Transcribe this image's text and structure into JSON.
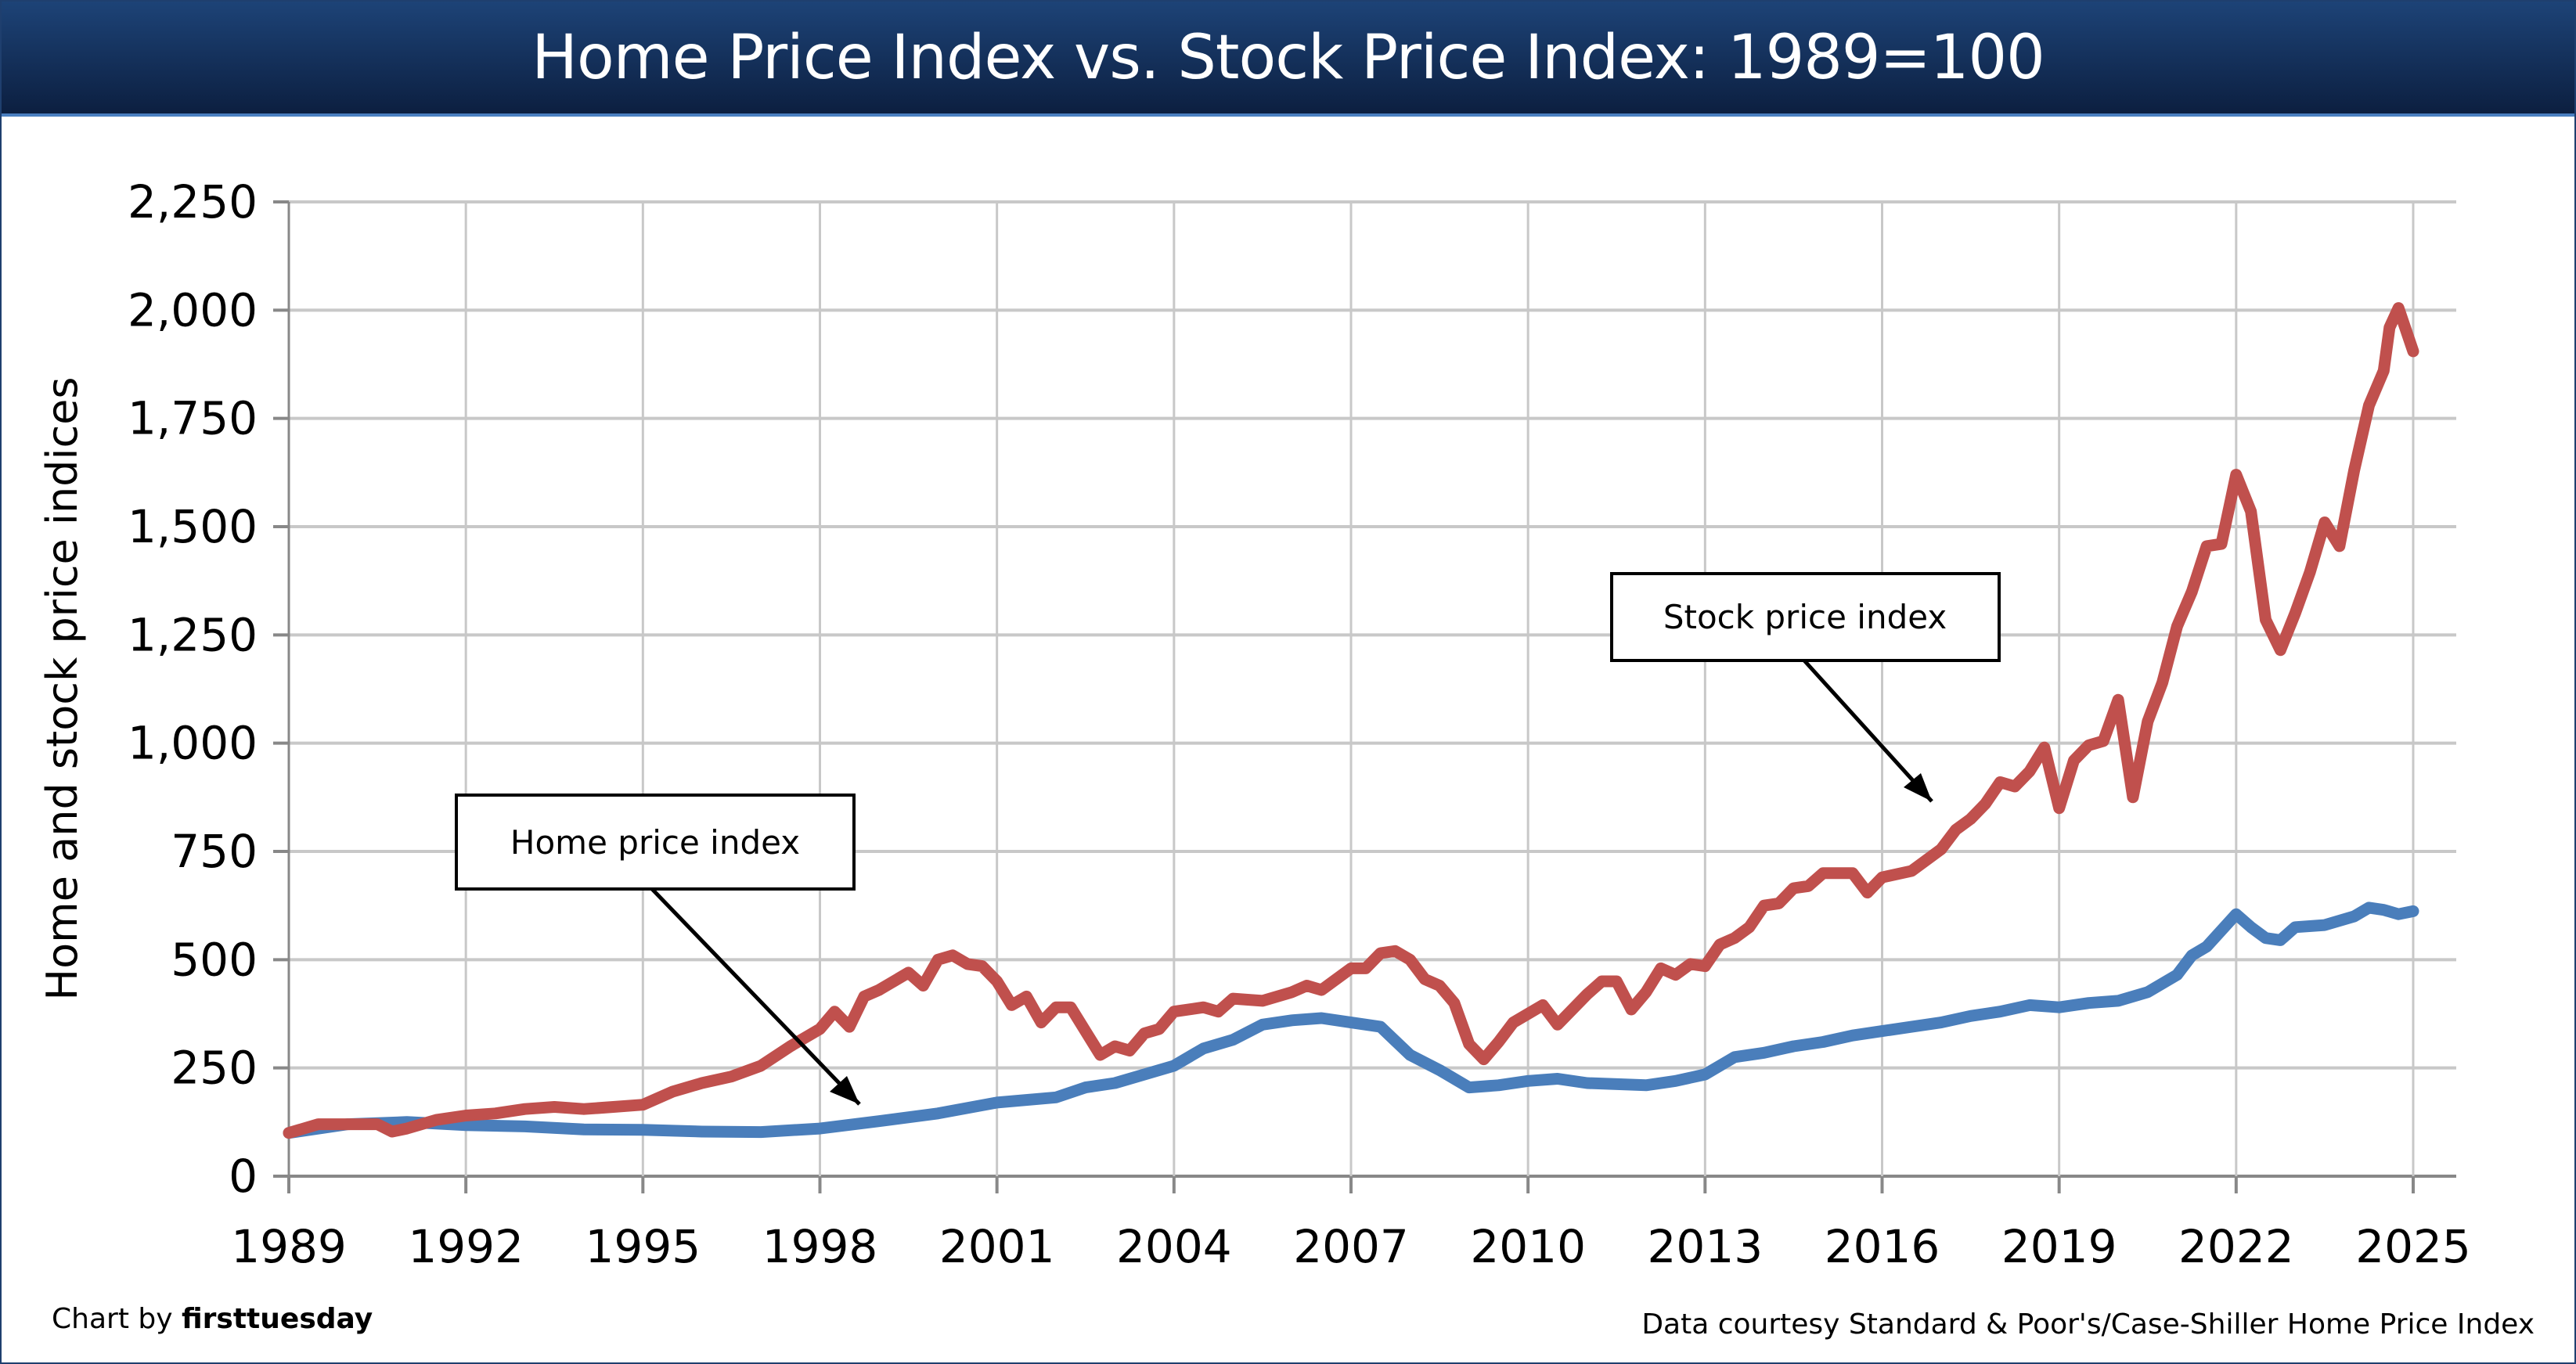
{
  "chart_data": {
    "type": "line",
    "title": "Home Price Index vs. Stock Price Index: 1989=100",
    "ylabel": "Home and stock price indices",
    "xlabel": "",
    "xlim": [
      1989,
      2025
    ],
    "ylim": [
      0,
      2250
    ],
    "x_ticks": [
      "1989",
      "1992",
      "1995",
      "1998",
      "2001",
      "2004",
      "2007",
      "2010",
      "2013",
      "2016",
      "2019",
      "2022",
      "2025"
    ],
    "y_ticks": [
      "0",
      "250",
      "500",
      "750",
      "1,000",
      "1,250",
      "1,500",
      "1,750",
      "2,000",
      "2,250"
    ],
    "grid": true,
    "legend": "none",
    "series": [
      {
        "name": "Stock price index",
        "color": "#c0504d",
        "x": [
          1989,
          1989.5,
          1990,
          1990.5,
          1990.75,
          1991,
          1991.5,
          1992,
          1992.5,
          1993,
          1993.5,
          1994,
          1994.5,
          1995,
          1995.5,
          1996,
          1996.5,
          1997,
          1997.5,
          1998,
          1998.25,
          1998.5,
          1998.75,
          1999,
          1999.5,
          1999.75,
          2000,
          2000.25,
          2000.5,
          2000.75,
          2001,
          2001.25,
          2001.5,
          2001.75,
          2002,
          2002.25,
          2002.75,
          2003,
          2003.25,
          2003.5,
          2003.75,
          2004,
          2004.5,
          2004.75,
          2005,
          2005.5,
          2006,
          2006.25,
          2006.5,
          2007,
          2007.25,
          2007.5,
          2007.75,
          2008,
          2008.25,
          2008.5,
          2008.75,
          2009,
          2009.25,
          2009.5,
          2009.75,
          2010,
          2010.25,
          2010.5,
          2011,
          2011.25,
          2011.5,
          2011.75,
          2012,
          2012.25,
          2012.5,
          2012.75,
          2013,
          2013.25,
          2013.5,
          2013.75,
          2014,
          2014.25,
          2014.5,
          2014.75,
          2015,
          2015.5,
          2015.75,
          2016,
          2016.5,
          2017,
          2017.25,
          2017.5,
          2017.75,
          2018,
          2018.25,
          2018.5,
          2018.75,
          2019,
          2019.25,
          2019.5,
          2019.75,
          2020,
          2020.25,
          2020.5,
          2020.75,
          2021,
          2021.25,
          2021.5,
          2021.75,
          2022,
          2022.25,
          2022.5,
          2022.75,
          2023,
          2023.25,
          2023.5,
          2023.75,
          2024,
          2024.25,
          2024.5,
          2024.6,
          2024.75,
          2025
        ],
        "values": [
          100,
          120,
          120,
          120,
          103,
          110,
          130,
          140,
          145,
          155,
          160,
          155,
          160,
          165,
          195,
          215,
          230,
          255,
          300,
          340,
          380,
          345,
          415,
          430,
          470,
          440,
          500,
          510,
          490,
          485,
          450,
          395,
          415,
          355,
          390,
          390,
          280,
          300,
          290,
          330,
          340,
          380,
          390,
          380,
          410,
          405,
          425,
          440,
          430,
          480,
          480,
          515,
          520,
          500,
          455,
          440,
          400,
          305,
          270,
          310,
          355,
          375,
          395,
          350,
          420,
          450,
          450,
          385,
          425,
          480,
          465,
          490,
          485,
          535,
          550,
          575,
          625,
          630,
          665,
          670,
          700,
          700,
          655,
          690,
          705,
          755,
          800,
          825,
          860,
          910,
          900,
          935,
          990,
          850,
          960,
          995,
          1005,
          1100,
          875,
          1050,
          1140,
          1270,
          1350,
          1455,
          1460,
          1620,
          1535,
          1285,
          1215,
          1300,
          1395,
          1510,
          1455,
          1630,
          1780,
          1860,
          1960,
          2005,
          1905
        ]
      },
      {
        "name": "Home price index",
        "color": "#4a7ebb",
        "x": [
          1989,
          1990,
          1991,
          1992,
          1993,
          1994,
          1995,
          1996,
          1997,
          1998,
          1999,
          2000,
          2001,
          2002,
          2002.5,
          2003,
          2004,
          2004.5,
          2005,
          2005.5,
          2006,
          2006.5,
          2007,
          2007.5,
          2008,
          2008.5,
          2009,
          2009.5,
          2010,
          2010.5,
          2011,
          2012,
          2012.5,
          2013,
          2013.5,
          2014,
          2014.5,
          2015,
          2015.5,
          2016,
          2016.5,
          2017,
          2017.5,
          2018,
          2018.5,
          2019,
          2019.5,
          2020,
          2020.5,
          2021,
          2021.25,
          2021.5,
          2022,
          2022.25,
          2022.5,
          2022.75,
          2023,
          2023.5,
          2024,
          2024.25,
          2024.5,
          2024.75,
          2025
        ],
        "values": [
          100,
          120,
          125,
          118,
          115,
          108,
          107,
          103,
          102,
          110,
          127,
          145,
          170,
          182,
          205,
          215,
          255,
          295,
          315,
          350,
          360,
          365,
          355,
          345,
          280,
          245,
          205,
          210,
          220,
          225,
          215,
          210,
          220,
          235,
          275,
          285,
          300,
          310,
          325,
          335,
          345,
          355,
          370,
          380,
          395,
          390,
          400,
          405,
          425,
          465,
          510,
          530,
          605,
          575,
          550,
          545,
          575,
          580,
          600,
          620,
          615,
          605,
          612
        ]
      }
    ],
    "annotations": [
      {
        "text": "Home price index"
      },
      {
        "text": "Stock price index"
      }
    ]
  },
  "footer": {
    "credit_prefix": "Chart by ",
    "credit_brand": "firsttuesday",
    "source": "Data courtesy Standard & Poor's/Case-Shiller Home Price Index"
  }
}
